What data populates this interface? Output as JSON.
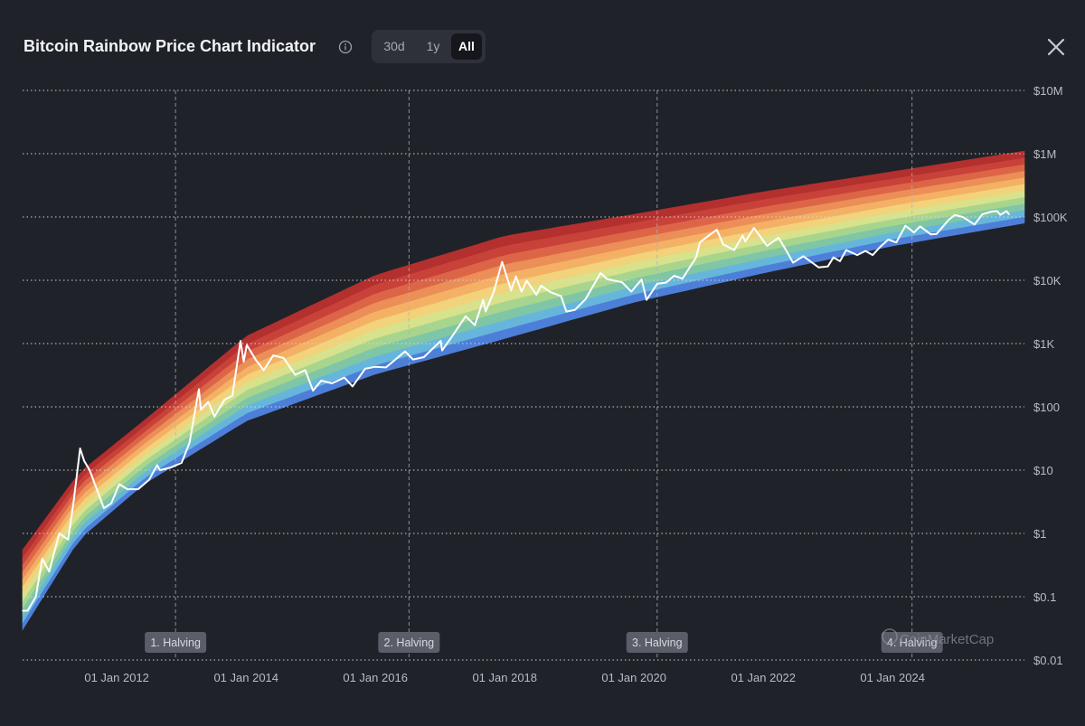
{
  "header": {
    "title": "Bitcoin Rainbow Price Chart Indicator",
    "ranges": [
      "30d",
      "1y",
      "All"
    ],
    "active_range": "All"
  },
  "watermark": "CoinMarketCap",
  "colors": {
    "background": "#202229",
    "price_line": "#ffffff",
    "bands": [
      "#4d7fd8",
      "#66b6dc",
      "#7ec6a6",
      "#a8d58e",
      "#d8e28c",
      "#f2d27a",
      "#f4b165",
      "#ec8e57",
      "#dd6547",
      "#c8423a",
      "#b3302e"
    ]
  },
  "chart_data": {
    "type": "line",
    "title": "Bitcoin Rainbow Price Chart Indicator",
    "yscale": "log",
    "ylim": [
      0.01,
      10000000
    ],
    "yticks": [
      {
        "value": 10000000,
        "label": "$10M"
      },
      {
        "value": 1000000,
        "label": "$1M"
      },
      {
        "value": 100000,
        "label": "$100K"
      },
      {
        "value": 10000,
        "label": "$10K"
      },
      {
        "value": 1000,
        "label": "$1K"
      },
      {
        "value": 100,
        "label": "$100"
      },
      {
        "value": 10,
        "label": "$10"
      },
      {
        "value": 1,
        "label": "$1"
      },
      {
        "value": 0.1,
        "label": "$0.1"
      },
      {
        "value": 0.01,
        "label": "$0.01"
      }
    ],
    "xlim": [
      "2010-07-18",
      "2026-01-15"
    ],
    "xticks": [
      {
        "date": "2012-01-01",
        "label": "01 Jan 2012"
      },
      {
        "date": "2014-01-01",
        "label": "01 Jan 2014"
      },
      {
        "date": "2016-01-01",
        "label": "01 Jan 2016"
      },
      {
        "date": "2018-01-01",
        "label": "01 Jan 2018"
      },
      {
        "date": "2020-01-01",
        "label": "01 Jan 2020"
      },
      {
        "date": "2022-01-01",
        "label": "01 Jan 2022"
      },
      {
        "date": "2024-01-01",
        "label": "01 Jan 2024"
      }
    ],
    "halvings": [
      {
        "date": "2012-11-28",
        "label": "1. Halving"
      },
      {
        "date": "2016-07-09",
        "label": "2. Halving"
      },
      {
        "date": "2020-05-11",
        "label": "3. Halving"
      },
      {
        "date": "2024-04-20",
        "label": "4. Halving"
      }
    ],
    "rainbow_bands": {
      "band_count": 11,
      "lower_edge": [
        {
          "date": "2010-07-18",
          "value": 0.03
        },
        {
          "date": "2011-06-01",
          "value": 0.8
        },
        {
          "date": "2012-06-01",
          "value": 6
        },
        {
          "date": "2014-01-01",
          "value": 60
        },
        {
          "date": "2016-01-01",
          "value": 330
        },
        {
          "date": "2018-01-01",
          "value": 1200
        },
        {
          "date": "2020-01-01",
          "value": 4500
        },
        {
          "date": "2022-01-01",
          "value": 13000
        },
        {
          "date": "2024-01-01",
          "value": 35000
        },
        {
          "date": "2026-01-15",
          "value": 80000
        }
      ],
      "upper_edge": [
        {
          "date": "2010-07-18",
          "value": 0.55
        },
        {
          "date": "2011-06-01",
          "value": 9
        },
        {
          "date": "2012-06-01",
          "value": 60
        },
        {
          "date": "2014-01-01",
          "value": 1300
        },
        {
          "date": "2016-01-01",
          "value": 12000
        },
        {
          "date": "2018-01-01",
          "value": 50000
        },
        {
          "date": "2020-01-01",
          "value": 110000
        },
        {
          "date": "2022-01-01",
          "value": 250000
        },
        {
          "date": "2024-01-01",
          "value": 520000
        },
        {
          "date": "2026-01-15",
          "value": 1100000
        }
      ]
    },
    "series": [
      {
        "name": "BTC price",
        "points": [
          [
            "2010-07-18",
            0.06
          ],
          [
            "2010-08-15",
            0.06
          ],
          [
            "2010-10-01",
            0.1
          ],
          [
            "2010-11-06",
            0.4
          ],
          [
            "2010-12-15",
            0.25
          ],
          [
            "2011-02-10",
            1.0
          ],
          [
            "2011-04-01",
            0.8
          ],
          [
            "2011-05-01",
            3.0
          ],
          [
            "2011-06-08",
            22
          ],
          [
            "2011-07-01",
            14
          ],
          [
            "2011-08-01",
            10
          ],
          [
            "2011-09-10",
            5
          ],
          [
            "2011-10-20",
            2.5
          ],
          [
            "2011-12-01",
            3.0
          ],
          [
            "2012-01-15",
            6.0
          ],
          [
            "2012-03-01",
            5
          ],
          [
            "2012-05-01",
            5
          ],
          [
            "2012-07-01",
            7
          ],
          [
            "2012-08-16",
            12
          ],
          [
            "2012-09-01",
            10
          ],
          [
            "2012-11-01",
            11
          ],
          [
            "2013-01-01",
            13
          ],
          [
            "2013-02-15",
            27
          ],
          [
            "2013-04-09",
            190
          ],
          [
            "2013-04-20",
            90
          ],
          [
            "2013-06-01",
            120
          ],
          [
            "2013-07-06",
            70
          ],
          [
            "2013-09-01",
            130
          ],
          [
            "2013-10-15",
            150
          ],
          [
            "2013-11-30",
            1100
          ],
          [
            "2013-12-18",
            520
          ],
          [
            "2014-01-05",
            950
          ],
          [
            "2014-02-25",
            550
          ],
          [
            "2014-04-10",
            380
          ],
          [
            "2014-06-03",
            650
          ],
          [
            "2014-08-01",
            590
          ],
          [
            "2014-10-05",
            320
          ],
          [
            "2014-12-01",
            380
          ],
          [
            "2015-01-14",
            180
          ],
          [
            "2015-03-01",
            260
          ],
          [
            "2015-05-01",
            235
          ],
          [
            "2015-07-10",
            290
          ],
          [
            "2015-08-25",
            210
          ],
          [
            "2015-11-04",
            400
          ],
          [
            "2016-01-01",
            430
          ],
          [
            "2016-03-01",
            420
          ],
          [
            "2016-06-17",
            750
          ],
          [
            "2016-08-01",
            560
          ],
          [
            "2016-10-01",
            610
          ],
          [
            "2017-01-04",
            1100
          ],
          [
            "2017-01-12",
            780
          ],
          [
            "2017-03-01",
            1200
          ],
          [
            "2017-05-25",
            2700
          ],
          [
            "2017-07-16",
            1950
          ],
          [
            "2017-09-01",
            4900
          ],
          [
            "2017-09-15",
            3200
          ],
          [
            "2017-11-01",
            6700
          ],
          [
            "2017-12-17",
            19500
          ],
          [
            "2018-02-06",
            6900
          ],
          [
            "2018-03-05",
            11500
          ],
          [
            "2018-04-06",
            6600
          ],
          [
            "2018-05-05",
            9800
          ],
          [
            "2018-06-29",
            5900
          ],
          [
            "2018-07-25",
            8200
          ],
          [
            "2018-09-15",
            6500
          ],
          [
            "2018-11-15",
            5600
          ],
          [
            "2018-12-15",
            3200
          ],
          [
            "2019-02-01",
            3400
          ],
          [
            "2019-04-02",
            5000
          ],
          [
            "2019-06-26",
            13000
          ],
          [
            "2019-08-01",
            10500
          ],
          [
            "2019-09-01",
            10000
          ],
          [
            "2019-10-26",
            9300
          ],
          [
            "2019-12-17",
            6600
          ],
          [
            "2020-02-13",
            10300
          ],
          [
            "2020-03-12",
            4900
          ],
          [
            "2020-05-11",
            8800
          ],
          [
            "2020-07-01",
            9200
          ],
          [
            "2020-08-15",
            11800
          ],
          [
            "2020-10-01",
            10600
          ],
          [
            "2020-12-17",
            23000
          ],
          [
            "2021-01-08",
            40000
          ],
          [
            "2021-02-15",
            48000
          ],
          [
            "2021-04-13",
            63000
          ],
          [
            "2021-05-19",
            37000
          ],
          [
            "2021-07-20",
            30000
          ],
          [
            "2021-09-06",
            51000
          ],
          [
            "2021-09-21",
            41000
          ],
          [
            "2021-11-09",
            67000
          ],
          [
            "2022-01-22",
            35000
          ],
          [
            "2022-03-28",
            47000
          ],
          [
            "2022-05-12",
            29000
          ],
          [
            "2022-06-18",
            19000
          ],
          [
            "2022-08-15",
            24000
          ],
          [
            "2022-11-09",
            16000
          ],
          [
            "2022-12-31",
            16500
          ],
          [
            "2023-02-01",
            23000
          ],
          [
            "2023-03-10",
            20000
          ],
          [
            "2023-04-14",
            30000
          ],
          [
            "2023-06-15",
            25000
          ],
          [
            "2023-08-01",
            29000
          ],
          [
            "2023-09-11",
            25000
          ],
          [
            "2023-10-24",
            34000
          ],
          [
            "2023-12-08",
            44000
          ],
          [
            "2024-01-22",
            39500
          ],
          [
            "2024-03-14",
            73000
          ],
          [
            "2024-05-01",
            57000
          ],
          [
            "2024-06-05",
            71000
          ],
          [
            "2024-08-05",
            53000
          ],
          [
            "2024-09-06",
            54000
          ],
          [
            "2024-11-13",
            90000
          ],
          [
            "2024-12-17",
            107000
          ],
          [
            "2025-02-01",
            100000
          ],
          [
            "2025-04-08",
            76000
          ],
          [
            "2025-05-22",
            110000
          ],
          [
            "2025-07-14",
            122000
          ],
          [
            "2025-08-14",
            124000
          ],
          [
            "2025-09-01",
            108000
          ],
          [
            "2025-10-06",
            124000
          ],
          [
            "2025-10-20",
            110000
          ]
        ]
      }
    ],
    "grid": true,
    "legend": "none"
  }
}
